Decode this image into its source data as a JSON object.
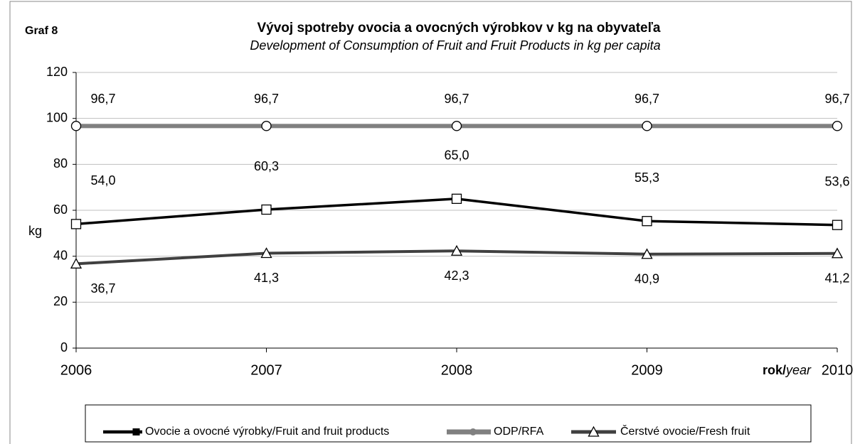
{
  "chart_data": {
    "type": "line",
    "label": "Graf 8",
    "title": "Vývoj spotreby ovocia a ovocných výrobkov  v kg na obyvateľa",
    "subtitle": "Development of Consumption of Fruit and Fruit Products  in kg per capita",
    "ylabel": "kg",
    "xlabel": [
      "rok/",
      "year"
    ],
    "categories": [
      "2006",
      "2007",
      "2008",
      "2009",
      "2010"
    ],
    "series": [
      {
        "name": "Ovocie a ovocné výrobky/Fruit and fruit products",
        "color": "#000000",
        "marker": "square",
        "values": [
          54.0,
          60.3,
          65.0,
          55.3,
          53.6
        ],
        "value_labels": [
          "54,0",
          "60,3",
          "65,0",
          "55,3",
          "53,6"
        ]
      },
      {
        "name": "ODP/RFA",
        "color": "#808080",
        "marker": "circle",
        "values": [
          96.7,
          96.7,
          96.7,
          96.7,
          96.7
        ],
        "value_labels": [
          "96,7",
          "96,7",
          "96,7",
          "96,7",
          "96,7"
        ]
      },
      {
        "name": "Čerstvé ovocie/Fresh fruit",
        "color": "#404040",
        "marker": "triangle",
        "values": [
          36.7,
          41.3,
          42.3,
          40.9,
          41.2
        ],
        "value_labels": [
          "36,7",
          "41,3",
          "42,3",
          "40,9",
          "41,2"
        ]
      }
    ],
    "ylim": [
      0,
      120
    ],
    "yticks": [
      0,
      20,
      40,
      60,
      80,
      100,
      120
    ],
    "grid": true,
    "legend": "bottom"
  }
}
